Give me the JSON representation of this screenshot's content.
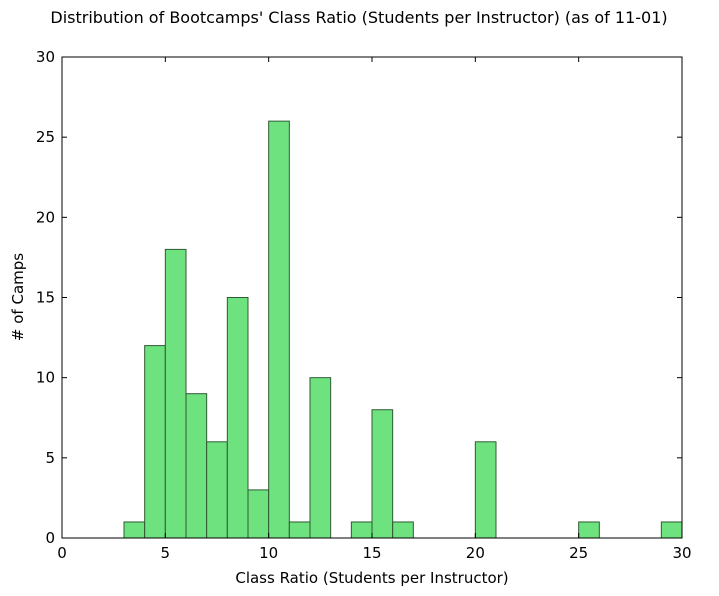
{
  "chart_data": {
    "type": "bar",
    "title": "Distribution of Bootcamps' Class Ratio (Students per Instructor) (as of 11-01)",
    "xlabel": "Class Ratio (Students per Instructor)",
    "ylabel": "# of Camps",
    "xlim": [
      0,
      30
    ],
    "ylim": [
      0,
      30
    ],
    "xticks": [
      "0",
      "5",
      "10",
      "15",
      "20",
      "25",
      "30"
    ],
    "yticks": [
      "0",
      "5",
      "10",
      "15",
      "20",
      "25",
      "30"
    ],
    "grid": false,
    "bins": [
      {
        "x0": 3.0,
        "x1": 4.0,
        "count": 1
      },
      {
        "x0": 4.0,
        "x1": 5.0,
        "count": 12
      },
      {
        "x0": 5.0,
        "x1": 6.0,
        "count": 18
      },
      {
        "x0": 6.0,
        "x1": 7.0,
        "count": 9
      },
      {
        "x0": 7.0,
        "x1": 8.0,
        "count": 6
      },
      {
        "x0": 8.0,
        "x1": 9.0,
        "count": 15
      },
      {
        "x0": 9.0,
        "x1": 10.0,
        "count": 3
      },
      {
        "x0": 10.0,
        "x1": 11.0,
        "count": 26
      },
      {
        "x0": 11.0,
        "x1": 12.0,
        "count": 1
      },
      {
        "x0": 12.0,
        "x1": 13.0,
        "count": 10
      },
      {
        "x0": 14.0,
        "x1": 15.0,
        "count": 1
      },
      {
        "x0": 15.0,
        "x1": 16.0,
        "count": 8
      },
      {
        "x0": 16.0,
        "x1": 17.0,
        "count": 1
      },
      {
        "x0": 20.0,
        "x1": 21.0,
        "count": 6
      },
      {
        "x0": 25.0,
        "x1": 26.0,
        "count": 1
      },
      {
        "x0": 29.0,
        "x1": 30.0,
        "count": 1
      }
    ],
    "bar_color": "#6ee27e",
    "edge_color": "#2f5a34"
  }
}
